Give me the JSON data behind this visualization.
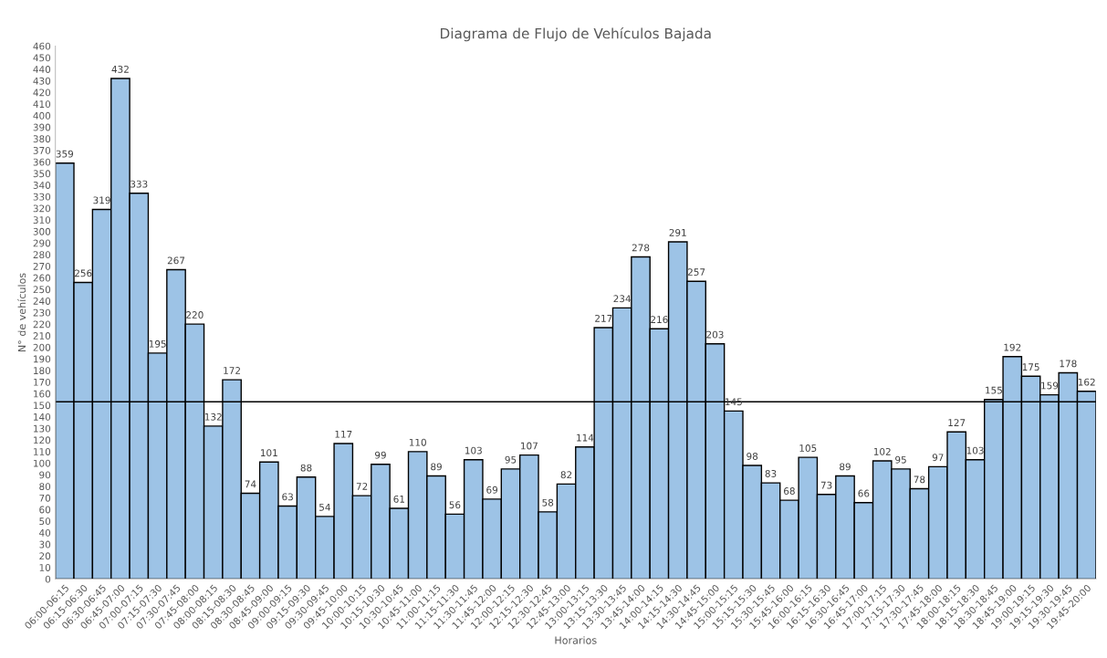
{
  "chart_data": {
    "type": "bar",
    "title": "Diagrama de Flujo de Vehículos Bajada",
    "xlabel": "Horarios",
    "ylabel": "N° de vehículos",
    "categories": [
      "06:00-06:15",
      "06:15-06:30",
      "06:30-06:45",
      "06:45-07:00",
      "07:00-07:15",
      "07:15-07:30",
      "07:30-07:45",
      "07:45-08:00",
      "08:00-08:15",
      "08:15-08:30",
      "08:30-08:45",
      "08:45-09:00",
      "09:00-09:15",
      "09:15-09:30",
      "09:30-09:45",
      "09:45-10:00",
      "10:00-10:15",
      "10:15-10:30",
      "10:30-10:45",
      "10:45-11:00",
      "11:00-11:15",
      "11:15-11:30",
      "11:30-11:45",
      "11:45-12:00",
      "12:00-12:15",
      "12:15-12:30",
      "12:30-12:45",
      "12:45-13:00",
      "13:00-13:15",
      "13:15-13:30",
      "13:30-13:45",
      "13:45-14:00",
      "14:00-14:15",
      "14:15-14:30",
      "14:30-14:45",
      "14:45-15:00",
      "15:00-15:15",
      "15:15-15:30",
      "15:30-15:45",
      "15:45-16:00",
      "16:00-16:15",
      "16:15-16:30",
      "16:30-16:45",
      "16:45-17:00",
      "17:00-17:15",
      "17:15-17:30",
      "17:30-17:45",
      "17:45-18:00",
      "18:00-18:15",
      "18:15-18:30",
      "18:30-18:45",
      "18:45-19:00",
      "19:00-19:15",
      "19:15-19:30",
      "19:30-19:45",
      "19:45-20:00"
    ],
    "values": [
      359,
      256,
      319,
      432,
      333,
      195,
      267,
      220,
      132,
      172,
      74,
      101,
      63,
      88,
      54,
      117,
      72,
      99,
      61,
      110,
      89,
      56,
      103,
      69,
      95,
      107,
      58,
      82,
      114,
      217,
      234,
      278,
      216,
      291,
      257,
      203,
      145,
      98,
      83,
      68,
      105,
      73,
      89,
      66,
      102,
      95,
      78,
      97,
      127,
      103,
      155,
      192,
      175,
      159,
      178,
      162
    ],
    "color": "#9dc3e6",
    "data_labels": true,
    "grid": false,
    "ylim": [
      0,
      460
    ],
    "yticks": [
      0,
      10,
      20,
      30,
      40,
      50,
      60,
      70,
      80,
      90,
      100,
      110,
      120,
      130,
      140,
      150,
      160,
      170,
      180,
      190,
      200,
      210,
      220,
      230,
      240,
      250,
      260,
      270,
      280,
      290,
      300,
      310,
      320,
      330,
      340,
      350,
      360,
      370,
      380,
      390,
      400,
      410,
      420,
      430,
      440,
      450,
      460
    ],
    "ref_lines": [
      {
        "axis": "y",
        "value": 153,
        "color": "#000000",
        "line_style": "solid"
      }
    ]
  }
}
